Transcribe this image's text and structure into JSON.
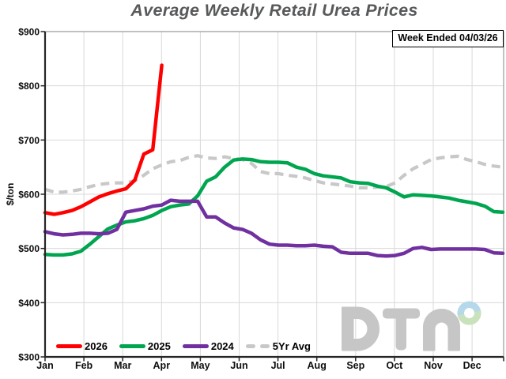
{
  "chart_data": {
    "type": "line",
    "title": "Average Weekly Retail Urea Prices",
    "badge": "Week Ended 04/03/26",
    "ylabel": "$/ton",
    "ylim": [
      300,
      900
    ],
    "yticks_values": [
      300,
      400,
      500,
      600,
      700,
      800,
      900
    ],
    "yticks_labels": [
      "$300",
      "$400",
      "$500",
      "$600",
      "$700",
      "$800",
      "$900"
    ],
    "xticks": [
      "Jan",
      "Feb",
      "Mar",
      "Apr",
      "May",
      "Jun",
      "Jul",
      "Aug",
      "Sep",
      "Oct",
      "Nov",
      "Dec"
    ],
    "x_unit": "week",
    "grid": true,
    "legend_position": "bottom-left",
    "watermark": "DTN",
    "colors": {
      "red_2026": "#ff0000",
      "green_2025": "#00a54f",
      "purple_2024": "#7030a0",
      "gray_5yr": "#c8c8c8",
      "gridline": "#d9d9d9",
      "axis": "#262626",
      "title_gray": "#58595b",
      "logo_gray": "#c6c6c6",
      "logo_blue": "#b5d8eb",
      "logo_green": "#c9e2bb"
    },
    "series": [
      {
        "name": "2026",
        "color": "#ff0000",
        "style": "solid",
        "values": [
          566,
          563,
          566,
          570,
          577,
          586,
          595,
          601,
          606,
          610,
          626,
          674,
          682,
          838
        ]
      },
      {
        "name": "2025",
        "color": "#00a54f",
        "style": "solid",
        "values": [
          489,
          488,
          488,
          490,
          495,
          508,
          522,
          536,
          543,
          549,
          551,
          555,
          561,
          570,
          577,
          580,
          582,
          597,
          624,
          632,
          650,
          663,
          665,
          664,
          660,
          659,
          659,
          658,
          650,
          646,
          638,
          634,
          632,
          630,
          623,
          621,
          620,
          615,
          612,
          604,
          595,
          599,
          598,
          597,
          595,
          593,
          589,
          586,
          583,
          578,
          568,
          567
        ]
      },
      {
        "name": "2024",
        "color": "#7030a0",
        "style": "solid",
        "values": [
          531,
          527,
          525,
          526,
          528,
          528,
          527,
          528,
          535,
          567,
          570,
          573,
          578,
          580,
          589,
          587,
          587,
          587,
          558,
          558,
          547,
          538,
          535,
          528,
          516,
          508,
          506,
          506,
          505,
          505,
          506,
          504,
          503,
          493,
          491,
          491,
          491,
          487,
          486,
          487,
          491,
          500,
          502,
          498,
          499,
          499,
          499,
          499,
          499,
          498,
          492,
          491
        ]
      },
      {
        "name": "5Yr Avg",
        "color": "#c8c8c8",
        "style": "dashed",
        "values": [
          609,
          604,
          604,
          606,
          609,
          614,
          618,
          620,
          621,
          621,
          625,
          635,
          647,
          654,
          660,
          662,
          668,
          671,
          667,
          666,
          669,
          666,
          664,
          657,
          642,
          638,
          638,
          635,
          633,
          630,
          625,
          621,
          619,
          617,
          615,
          612,
          612,
          613,
          614,
          621,
          635,
          647,
          655,
          664,
          667,
          669,
          670,
          664,
          660,
          655,
          652,
          650
        ]
      }
    ]
  }
}
